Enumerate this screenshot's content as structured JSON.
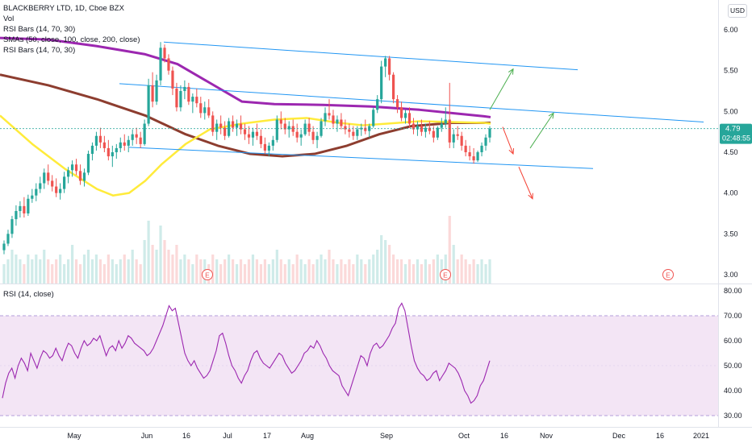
{
  "header": {
    "symbol_line": "BLACKBERRY LTD, 1D, Cboe BZX",
    "studies": [
      "Vol",
      "RSI Bars (14, 70, 30)",
      "SMAs (50, close, 100, close, 200, close)",
      "RSI Bars (14, 70, 30)"
    ],
    "currency_button": "USD"
  },
  "price_badge": {
    "value": "4.79",
    "countdown": "02:48:55"
  },
  "rsi_title": "RSI (14, close)",
  "earnings_marker": "E",
  "colors": {
    "up": "#26a69a",
    "down": "#ef5350",
    "sma50": "#ffeb3b",
    "sma100": "#9c27b0",
    "sma200": "#8d3d2f",
    "channel": "#2196f3",
    "rsi_line": "#9c27b0",
    "rsi_band": "#f3e5f5",
    "arrow_up": "#4caf50",
    "arrow_down": "#f44336"
  },
  "chart_data": [
    {
      "type": "candlestick",
      "title": "BLACKBERRY LTD, 1D, Cboe BZX",
      "price_axis": {
        "ticks": [
          "6.00",
          "5.50",
          "5.00",
          "4.50",
          "4.00",
          "3.50",
          "3.00"
        ],
        "range": [
          2.9,
          6.1
        ]
      },
      "time_axis": {
        "ticks": [
          "May",
          "Jun",
          "16",
          "Jul",
          "17",
          "Aug",
          "Sep",
          "Oct",
          "16",
          "Nov",
          "Dec",
          "16",
          "2021"
        ]
      },
      "last_price": 4.79,
      "candles": [
        [
          3.3,
          3.42,
          3.25,
          3.38
        ],
        [
          3.38,
          3.55,
          3.35,
          3.5
        ],
        [
          3.5,
          3.72,
          3.45,
          3.68
        ],
        [
          3.68,
          3.85,
          3.6,
          3.78
        ],
        [
          3.78,
          3.9,
          3.7,
          3.84
        ],
        [
          3.84,
          3.95,
          3.7,
          3.75
        ],
        [
          3.75,
          3.98,
          3.72,
          3.93
        ],
        [
          3.93,
          4.05,
          3.88,
          3.97
        ],
        [
          3.97,
          4.12,
          3.9,
          4.05
        ],
        [
          4.05,
          4.2,
          4.0,
          4.12
        ],
        [
          4.12,
          4.3,
          4.05,
          4.25
        ],
        [
          4.25,
          4.35,
          4.1,
          4.15
        ],
        [
          4.15,
          4.22,
          4.02,
          4.08
        ],
        [
          4.08,
          4.18,
          3.95,
          4.0
        ],
        [
          4.0,
          4.12,
          3.92,
          4.05
        ],
        [
          4.05,
          4.26,
          4.0,
          4.2
        ],
        [
          4.2,
          4.32,
          4.12,
          4.28
        ],
        [
          4.28,
          4.4,
          4.2,
          4.35
        ],
        [
          4.35,
          4.42,
          4.22,
          4.27
        ],
        [
          4.27,
          4.35,
          4.1,
          4.15
        ],
        [
          4.15,
          4.3,
          4.08,
          4.25
        ],
        [
          4.25,
          4.52,
          4.22,
          4.48
        ],
        [
          4.48,
          4.62,
          4.4,
          4.58
        ],
        [
          4.58,
          4.75,
          4.52,
          4.7
        ],
        [
          4.7,
          4.8,
          4.55,
          4.62
        ],
        [
          4.62,
          4.7,
          4.5,
          4.55
        ],
        [
          4.55,
          4.65,
          4.4,
          4.45
        ],
        [
          4.45,
          4.58,
          4.32,
          4.5
        ],
        [
          4.5,
          4.6,
          4.42,
          4.55
        ],
        [
          4.55,
          4.68,
          4.5,
          4.62
        ],
        [
          4.62,
          4.72,
          4.52,
          4.58
        ],
        [
          4.58,
          4.7,
          4.5,
          4.65
        ],
        [
          4.65,
          4.78,
          4.58,
          4.72
        ],
        [
          4.72,
          4.8,
          4.6,
          4.68
        ],
        [
          4.68,
          4.75,
          4.55,
          4.6
        ],
        [
          4.6,
          4.9,
          4.58,
          4.85
        ],
        [
          4.85,
          5.4,
          4.82,
          5.32
        ],
        [
          5.32,
          5.48,
          5.05,
          5.12
        ],
        [
          5.12,
          5.45,
          5.08,
          5.38
        ],
        [
          5.38,
          5.85,
          5.32,
          5.78
        ],
        [
          5.78,
          5.82,
          5.6,
          5.65
        ],
        [
          5.65,
          5.7,
          5.45,
          5.5
        ],
        [
          5.5,
          5.55,
          5.2,
          5.28
        ],
        [
          5.28,
          5.35,
          5.0,
          5.05
        ],
        [
          5.05,
          5.32,
          5.0,
          5.25
        ],
        [
          5.25,
          5.38,
          5.15,
          5.3
        ],
        [
          5.3,
          5.35,
          5.08,
          5.12
        ],
        [
          5.12,
          5.22,
          4.98,
          5.18
        ],
        [
          5.18,
          5.28,
          5.05,
          5.1
        ],
        [
          5.1,
          5.18,
          4.92,
          4.98
        ],
        [
          4.98,
          5.12,
          4.9,
          5.05
        ],
        [
          5.05,
          5.15,
          4.92,
          4.95
        ],
        [
          4.95,
          5.0,
          4.7,
          4.75
        ],
        [
          4.75,
          4.9,
          4.65,
          4.85
        ],
        [
          4.85,
          4.95,
          4.72,
          4.8
        ],
        [
          4.8,
          4.88,
          4.65,
          4.7
        ],
        [
          4.7,
          4.92,
          4.68,
          4.88
        ],
        [
          4.88,
          4.95,
          4.75,
          4.8
        ],
        [
          4.8,
          4.9,
          4.7,
          4.85
        ],
        [
          4.85,
          4.95,
          4.72,
          4.78
        ],
        [
          4.78,
          4.85,
          4.65,
          4.72
        ],
        [
          4.72,
          4.82,
          4.6,
          4.68
        ],
        [
          4.68,
          4.8,
          4.58,
          4.75
        ],
        [
          4.75,
          4.85,
          4.65,
          4.7
        ],
        [
          4.7,
          4.78,
          4.55,
          4.6
        ],
        [
          4.6,
          4.68,
          4.48,
          4.52
        ],
        [
          4.52,
          4.62,
          4.45,
          4.58
        ],
        [
          4.58,
          4.7,
          4.52,
          4.65
        ],
        [
          4.65,
          4.95,
          4.62,
          4.9
        ],
        [
          4.9,
          5.0,
          4.78,
          4.85
        ],
        [
          4.85,
          4.92,
          4.72,
          4.78
        ],
        [
          4.78,
          4.88,
          4.68,
          4.82
        ],
        [
          4.82,
          4.9,
          4.7,
          4.75
        ],
        [
          4.75,
          4.85,
          4.62,
          4.68
        ],
        [
          4.68,
          4.78,
          4.58,
          4.72
        ],
        [
          4.72,
          4.9,
          4.7,
          4.85
        ],
        [
          4.85,
          4.92,
          4.7,
          4.75
        ],
        [
          4.75,
          4.82,
          4.6,
          4.65
        ],
        [
          4.65,
          4.75,
          4.55,
          4.7
        ],
        [
          4.7,
          4.92,
          4.68,
          4.88
        ],
        [
          4.88,
          5.05,
          4.82,
          4.98
        ],
        [
          4.98,
          5.15,
          4.9,
          4.95
        ],
        [
          4.95,
          5.02,
          4.8,
          4.85
        ],
        [
          4.85,
          4.95,
          4.75,
          4.9
        ],
        [
          4.9,
          4.98,
          4.78,
          4.82
        ],
        [
          4.82,
          4.9,
          4.72,
          4.78
        ],
        [
          4.78,
          4.85,
          4.68,
          4.75
        ],
        [
          4.75,
          4.82,
          4.65,
          4.7
        ],
        [
          4.7,
          4.82,
          4.65,
          4.78
        ],
        [
          4.78,
          4.85,
          4.7,
          4.8
        ],
        [
          4.8,
          4.9,
          4.72,
          4.76
        ],
        [
          4.76,
          4.85,
          4.68,
          4.82
        ],
        [
          4.82,
          5.05,
          4.8,
          5.02
        ],
        [
          5.02,
          5.2,
          4.98,
          5.15
        ],
        [
          5.15,
          5.62,
          5.1,
          5.55
        ],
        [
          5.55,
          5.68,
          5.42,
          5.65
        ],
        [
          5.65,
          5.68,
          5.38,
          5.45
        ],
        [
          5.45,
          5.48,
          5.1,
          5.15
        ],
        [
          5.15,
          5.2,
          4.98,
          5.05
        ],
        [
          5.05,
          5.12,
          4.88,
          4.92
        ],
        [
          4.92,
          5.02,
          4.85,
          4.98
        ],
        [
          4.98,
          5.05,
          4.8,
          4.85
        ],
        [
          4.85,
          4.92,
          4.72,
          4.78
        ],
        [
          4.78,
          4.88,
          4.7,
          4.82
        ],
        [
          4.82,
          4.9,
          4.7,
          4.75
        ],
        [
          4.75,
          4.85,
          4.68,
          4.8
        ],
        [
          4.8,
          4.88,
          4.72,
          4.76
        ],
        [
          4.76,
          4.82,
          4.62,
          4.68
        ],
        [
          4.68,
          4.82,
          4.65,
          4.8
        ],
        [
          4.8,
          4.92,
          4.75,
          4.85
        ],
        [
          4.85,
          5.05,
          4.8,
          4.9
        ],
        [
          4.9,
          5.35,
          4.55,
          4.62
        ],
        [
          4.62,
          4.78,
          4.55,
          4.72
        ],
        [
          4.72,
          4.82,
          4.65,
          4.7
        ],
        [
          4.7,
          4.75,
          4.52,
          4.58
        ],
        [
          4.58,
          4.65,
          4.45,
          4.5
        ],
        [
          4.5,
          4.58,
          4.4,
          4.45
        ],
        [
          4.45,
          4.55,
          4.36,
          4.4
        ],
        [
          4.4,
          4.52,
          4.38,
          4.5
        ],
        [
          4.5,
          4.62,
          4.45,
          4.58
        ],
        [
          4.58,
          4.72,
          4.52,
          4.68
        ],
        [
          4.68,
          4.82,
          4.62,
          4.79
        ]
      ],
      "sma50": [
        [
          0,
          4.95
        ],
        [
          40,
          4.6
        ],
        [
          80,
          4.3
        ],
        [
          120,
          4.05
        ],
        [
          140,
          3.97
        ],
        [
          160,
          4.0
        ],
        [
          180,
          4.15
        ],
        [
          200,
          4.35
        ],
        [
          230,
          4.6
        ],
        [
          260,
          4.78
        ],
        [
          300,
          4.85
        ],
        [
          340,
          4.9
        ],
        [
          380,
          4.92
        ],
        [
          420,
          4.86
        ],
        [
          450,
          4.83
        ],
        [
          480,
          4.85
        ],
        [
          520,
          4.88
        ],
        [
          560,
          4.87
        ],
        [
          600,
          4.86
        ],
        [
          608,
          4.85
        ]
      ],
      "sma100": [
        [
          0,
          5.9
        ],
        [
          60,
          5.88
        ],
        [
          120,
          5.8
        ],
        [
          180,
          5.7
        ],
        [
          220,
          5.58
        ],
        [
          260,
          5.35
        ],
        [
          300,
          5.12
        ],
        [
          340,
          5.09
        ],
        [
          400,
          5.08
        ],
        [
          460,
          5.06
        ],
        [
          520,
          5.02
        ],
        [
          560,
          4.98
        ],
        [
          600,
          4.94
        ],
        [
          608,
          4.93
        ]
      ],
      "sma200": [
        [
          0,
          5.45
        ],
        [
          60,
          5.32
        ],
        [
          120,
          5.15
        ],
        [
          180,
          4.95
        ],
        [
          230,
          4.72
        ],
        [
          270,
          4.58
        ],
        [
          310,
          4.48
        ],
        [
          350,
          4.45
        ],
        [
          390,
          4.48
        ],
        [
          430,
          4.58
        ],
        [
          470,
          4.72
        ],
        [
          510,
          4.82
        ],
        [
          560,
          4.86
        ],
        [
          608,
          4.86
        ]
      ],
      "channels": [
        [
          [
            203,
            5.85
          ],
          [
            716,
            5.51
          ]
        ],
        [
          [
            148,
            5.34
          ],
          [
            872,
            4.87
          ]
        ],
        [
          [
            160,
            4.56
          ],
          [
            735,
            4.3
          ]
        ]
      ],
      "arrows": [
        {
          "from": [
            607,
            5.02
          ],
          "to": [
            636,
            5.52
          ],
          "dir": "up"
        },
        {
          "from": [
            657,
            4.55
          ],
          "to": [
            686,
            4.98
          ],
          "dir": "up"
        },
        {
          "from": [
            623,
            4.81
          ],
          "to": [
            636,
            4.48
          ],
          "dir": "down"
        },
        {
          "from": [
            643,
            4.32
          ],
          "to": [
            660,
            3.93
          ],
          "dir": "down"
        }
      ],
      "earnings_events": [
        257,
        552,
        828
      ],
      "volume_heights": [
        4,
        5,
        7,
        6,
        5,
        4,
        6,
        5,
        6,
        5,
        7,
        5,
        4,
        5,
        6,
        4,
        5,
        8,
        5,
        4,
        6,
        7,
        5,
        6,
        5,
        4,
        6,
        5,
        4,
        5,
        6,
        5,
        7,
        5,
        4,
        9,
        13,
        8,
        7,
        12,
        9,
        7,
        6,
        8,
        5,
        6,
        5,
        4,
        6,
        5,
        5,
        4,
        6,
        5,
        4,
        5,
        6,
        5,
        4,
        5,
        4,
        5,
        6,
        5,
        4,
        5,
        4,
        5,
        7,
        5,
        4,
        5,
        4,
        6,
        5,
        4,
        5,
        4,
        5,
        6,
        5,
        7,
        5,
        4,
        5,
        4,
        5,
        4,
        6,
        5,
        4,
        5,
        6,
        7,
        10,
        9,
        8,
        6,
        5,
        5,
        4,
        5,
        4,
        5,
        4,
        5,
        4,
        5,
        6,
        5,
        6,
        14,
        8,
        5,
        6,
        5,
        4,
        5,
        4,
        5,
        4,
        5
      ]
    },
    {
      "type": "line",
      "title": "RSI (14, close)",
      "y_axis": {
        "ticks": [
          "80.00",
          "70.00",
          "60.00",
          "50.00",
          "40.00",
          "30.00"
        ],
        "range": [
          28,
          82
        ]
      },
      "band": [
        30,
        70
      ],
      "values": [
        37,
        43,
        47,
        49,
        45,
        50,
        53,
        51,
        48,
        55,
        52,
        49,
        53,
        56,
        55,
        53,
        54,
        57,
        54,
        52,
        56,
        59,
        58,
        55,
        53,
        57,
        60,
        58,
        59,
        61,
        60,
        62,
        58,
        54,
        57,
        58,
        56,
        60,
        57,
        59,
        62,
        61,
        59,
        58,
        57,
        56,
        54,
        55,
        57,
        60,
        63,
        66,
        70,
        74,
        72,
        73,
        67,
        61,
        55,
        52,
        50,
        52,
        49,
        47,
        45,
        46,
        48,
        52,
        56,
        62,
        63,
        59,
        54,
        50,
        48,
        45,
        43,
        46,
        48,
        52,
        55,
        56,
        53,
        51,
        50,
        49,
        51,
        53,
        55,
        54,
        51,
        49,
        47,
        48,
        50,
        52,
        55,
        56,
        58,
        57,
        60,
        58,
        55,
        53,
        50,
        48,
        47,
        46,
        42,
        40,
        38,
        42,
        46,
        50,
        54,
        53,
        50,
        55,
        58,
        59,
        57,
        58,
        60,
        62,
        65,
        67,
        73,
        75,
        72,
        65,
        58,
        52,
        49,
        47,
        46,
        44,
        45,
        47,
        48,
        44,
        46,
        48,
        51,
        50,
        49,
        47,
        44,
        40,
        38,
        35,
        36,
        38,
        42,
        44,
        48,
        52
      ],
      "time_axis": {
        "ticks": [
          "May",
          "Jun",
          "16",
          "Jul",
          "17",
          "Aug",
          "Sep",
          "Oct",
          "16",
          "Nov",
          "Dec",
          "16",
          "2021"
        ]
      }
    }
  ]
}
